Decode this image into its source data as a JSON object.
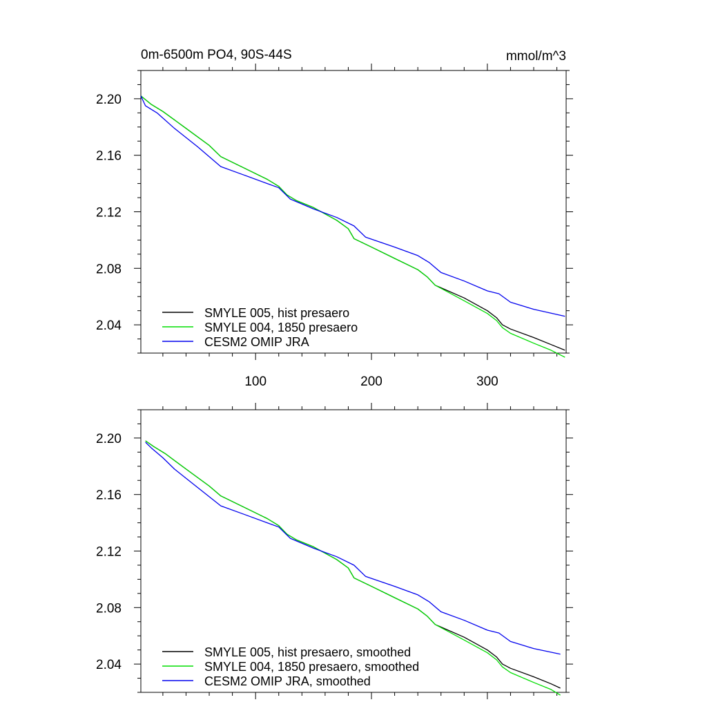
{
  "header": {
    "left_title": "0m-6500m PO4, 90S-44S",
    "right_title": "mmol/m^3"
  },
  "chart_data": [
    {
      "type": "line",
      "title": "0m-6500m PO4, 90S-44S",
      "units": "mmol/m^3",
      "xlim": [
        1,
        368
      ],
      "ylim": [
        2.02,
        2.22
      ],
      "x_ticks": [
        100,
        200,
        300
      ],
      "x_tick_labels": [
        "100",
        "200",
        "300"
      ],
      "y_ticks": [
        2.04,
        2.08,
        2.12,
        2.16,
        2.2
      ],
      "y_tick_labels": [
        "2.04",
        "2.08",
        "2.12",
        "2.16",
        "2.20"
      ],
      "legend_position": "bottom-left",
      "series": [
        {
          "name": "SMYLE 005, hist presaero",
          "color": "#000000",
          "points": [
            [
              1,
              2.202
            ],
            [
              10,
              2.196
            ],
            [
              20,
              2.191
            ],
            [
              40,
              2.179
            ],
            [
              60,
              2.167
            ],
            [
              70,
              2.159
            ],
            [
              90,
              2.151
            ],
            [
              110,
              2.143
            ],
            [
              120,
              2.138
            ],
            [
              127,
              2.132
            ],
            [
              135,
              2.128
            ],
            [
              150,
              2.123
            ],
            [
              170,
              2.114
            ],
            [
              180,
              2.108
            ],
            [
              185,
              2.101
            ],
            [
              200,
              2.095
            ],
            [
              220,
              2.087
            ],
            [
              240,
              2.079
            ],
            [
              248,
              2.074
            ],
            [
              255,
              2.068
            ],
            [
              280,
              2.059
            ],
            [
              300,
              2.05
            ],
            [
              308,
              2.045
            ],
            [
              313,
              2.04
            ],
            [
              320,
              2.037
            ],
            [
              340,
              2.031
            ],
            [
              355,
              2.026
            ],
            [
              367,
              2.022
            ]
          ]
        },
        {
          "name": "SMYLE 004, 1850 presaero",
          "color": "#00dd00",
          "points": [
            [
              1,
              2.202
            ],
            [
              10,
              2.196
            ],
            [
              20,
              2.191
            ],
            [
              40,
              2.179
            ],
            [
              60,
              2.167
            ],
            [
              70,
              2.159
            ],
            [
              90,
              2.151
            ],
            [
              110,
              2.143
            ],
            [
              120,
              2.138
            ],
            [
              127,
              2.132
            ],
            [
              135,
              2.128
            ],
            [
              150,
              2.123
            ],
            [
              170,
              2.114
            ],
            [
              180,
              2.108
            ],
            [
              185,
              2.101
            ],
            [
              200,
              2.095
            ],
            [
              220,
              2.087
            ],
            [
              240,
              2.079
            ],
            [
              248,
              2.074
            ],
            [
              255,
              2.068
            ],
            [
              280,
              2.057
            ],
            [
              300,
              2.048
            ],
            [
              308,
              2.043
            ],
            [
              313,
              2.038
            ],
            [
              320,
              2.034
            ],
            [
              340,
              2.027
            ],
            [
              355,
              2.022
            ],
            [
              367,
              2.017
            ]
          ]
        },
        {
          "name": "CESM2 OMIP JRA",
          "color": "#0000ee",
          "points": [
            [
              1,
              2.202
            ],
            [
              5,
              2.195
            ],
            [
              15,
              2.19
            ],
            [
              30,
              2.179
            ],
            [
              50,
              2.166
            ],
            [
              70,
              2.152
            ],
            [
              90,
              2.146
            ],
            [
              110,
              2.14
            ],
            [
              120,
              2.137
            ],
            [
              130,
              2.129
            ],
            [
              150,
              2.122
            ],
            [
              170,
              2.116
            ],
            [
              185,
              2.11
            ],
            [
              195,
              2.102
            ],
            [
              220,
              2.095
            ],
            [
              240,
              2.089
            ],
            [
              250,
              2.084
            ],
            [
              260,
              2.077
            ],
            [
              280,
              2.071
            ],
            [
              300,
              2.064
            ],
            [
              310,
              2.062
            ],
            [
              320,
              2.056
            ],
            [
              340,
              2.051
            ],
            [
              367,
              2.046
            ]
          ]
        }
      ]
    },
    {
      "type": "line",
      "xlim": [
        1,
        368
      ],
      "ylim": [
        2.02,
        2.22
      ],
      "x_ticks": [
        100,
        200,
        300
      ],
      "y_ticks": [
        2.04,
        2.08,
        2.12,
        2.16,
        2.2
      ],
      "y_tick_labels": [
        "2.04",
        "2.08",
        "2.12",
        "2.16",
        "2.20"
      ],
      "legend_position": "bottom-left",
      "series": [
        {
          "name": "SMYLE 005, hist presaero, smoothed",
          "color": "#000000",
          "points": [
            [
              5,
              2.198
            ],
            [
              12,
              2.194
            ],
            [
              22,
              2.189
            ],
            [
              40,
              2.178
            ],
            [
              60,
              2.166
            ],
            [
              70,
              2.159
            ],
            [
              90,
              2.151
            ],
            [
              110,
              2.143
            ],
            [
              120,
              2.138
            ],
            [
              127,
              2.132
            ],
            [
              135,
              2.128
            ],
            [
              150,
              2.123
            ],
            [
              170,
              2.114
            ],
            [
              180,
              2.108
            ],
            [
              185,
              2.101
            ],
            [
              200,
              2.095
            ],
            [
              220,
              2.087
            ],
            [
              240,
              2.079
            ],
            [
              248,
              2.074
            ],
            [
              255,
              2.068
            ],
            [
              280,
              2.059
            ],
            [
              300,
              2.05
            ],
            [
              308,
              2.045
            ],
            [
              313,
              2.04
            ],
            [
              320,
              2.037
            ],
            [
              340,
              2.031
            ],
            [
              355,
              2.026
            ],
            [
              363,
              2.023
            ]
          ]
        },
        {
          "name": "SMYLE 004, 1850 presaero, smoothed",
          "color": "#00dd00",
          "points": [
            [
              5,
              2.198
            ],
            [
              12,
              2.194
            ],
            [
              22,
              2.189
            ],
            [
              40,
              2.178
            ],
            [
              60,
              2.166
            ],
            [
              70,
              2.159
            ],
            [
              90,
              2.151
            ],
            [
              110,
              2.143
            ],
            [
              120,
              2.138
            ],
            [
              127,
              2.132
            ],
            [
              135,
              2.128
            ],
            [
              150,
              2.123
            ],
            [
              170,
              2.114
            ],
            [
              180,
              2.108
            ],
            [
              185,
              2.101
            ],
            [
              200,
              2.095
            ],
            [
              220,
              2.087
            ],
            [
              240,
              2.079
            ],
            [
              248,
              2.074
            ],
            [
              255,
              2.068
            ],
            [
              280,
              2.057
            ],
            [
              300,
              2.048
            ],
            [
              308,
              2.043
            ],
            [
              313,
              2.038
            ],
            [
              320,
              2.034
            ],
            [
              340,
              2.027
            ],
            [
              355,
              2.022
            ],
            [
              363,
              2.018
            ]
          ]
        },
        {
          "name": "CESM2 OMIP JRA, smoothed",
          "color": "#0000ee",
          "points": [
            [
              5,
              2.197
            ],
            [
              10,
              2.193
            ],
            [
              20,
              2.186
            ],
            [
              30,
              2.178
            ],
            [
              50,
              2.165
            ],
            [
              70,
              2.152
            ],
            [
              90,
              2.146
            ],
            [
              110,
              2.14
            ],
            [
              120,
              2.137
            ],
            [
              130,
              2.129
            ],
            [
              150,
              2.122
            ],
            [
              170,
              2.116
            ],
            [
              185,
              2.11
            ],
            [
              195,
              2.102
            ],
            [
              220,
              2.095
            ],
            [
              240,
              2.089
            ],
            [
              250,
              2.084
            ],
            [
              260,
              2.077
            ],
            [
              280,
              2.071
            ],
            [
              300,
              2.064
            ],
            [
              310,
              2.062
            ],
            [
              320,
              2.056
            ],
            [
              340,
              2.051
            ],
            [
              363,
              2.047
            ]
          ]
        }
      ]
    }
  ]
}
